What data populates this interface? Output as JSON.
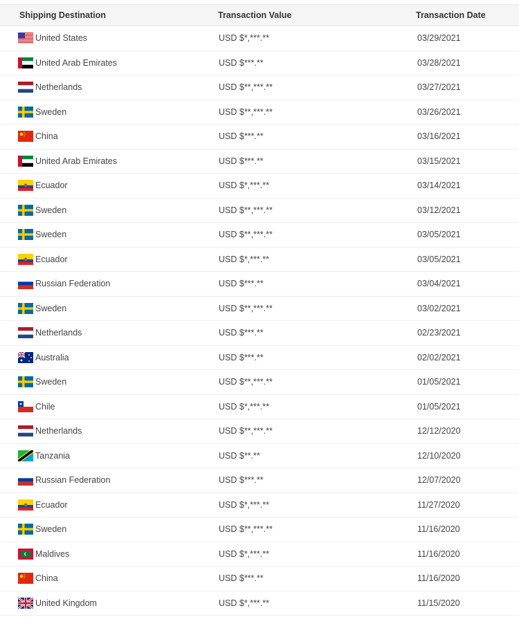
{
  "headers": {
    "destination": "Shipping Destination",
    "value": "Transaction Value",
    "date": "Transaction Date"
  },
  "rows": [
    {
      "country": "United States",
      "flag": "us-flag-icon",
      "value": "USD $*,***.**",
      "date": "03/29/2021"
    },
    {
      "country": "United Arab Emirates",
      "flag": "ae-flag-icon",
      "value": "USD $***.**",
      "date": "03/28/2021"
    },
    {
      "country": "Netherlands",
      "flag": "nl-flag-icon",
      "value": "USD $**,***.**",
      "date": "03/27/2021"
    },
    {
      "country": "Sweden",
      "flag": "se-flag-icon",
      "value": "USD $**,***.**",
      "date": "03/26/2021"
    },
    {
      "country": "China",
      "flag": "cn-flag-icon",
      "value": "USD $***.**",
      "date": "03/16/2021"
    },
    {
      "country": "United Arab Emirates",
      "flag": "ae-flag-icon",
      "value": "USD $***.**",
      "date": "03/15/2021"
    },
    {
      "country": "Ecuador",
      "flag": "ec-flag-icon",
      "value": "USD $*,***.**",
      "date": "03/14/2021"
    },
    {
      "country": "Sweden",
      "flag": "se-flag-icon",
      "value": "USD $**,***.**",
      "date": "03/12/2021"
    },
    {
      "country": "Sweden",
      "flag": "se-flag-icon",
      "value": "USD $**,***.**",
      "date": "03/05/2021"
    },
    {
      "country": "Ecuador",
      "flag": "ec-flag-icon",
      "value": "USD $*,***.**",
      "date": "03/05/2021"
    },
    {
      "country": "Russian Federation",
      "flag": "ru-flag-icon",
      "value": "USD $***.**",
      "date": "03/04/2021"
    },
    {
      "country": "Sweden",
      "flag": "se-flag-icon",
      "value": "USD $**,***.**",
      "date": "03/02/2021"
    },
    {
      "country": "Netherlands",
      "flag": "nl-flag-icon",
      "value": "USD $***.**",
      "date": "02/23/2021"
    },
    {
      "country": "Australia",
      "flag": "au-flag-icon",
      "value": "USD $***.**",
      "date": "02/02/2021"
    },
    {
      "country": "Sweden",
      "flag": "se-flag-icon",
      "value": "USD $**,***.**",
      "date": "01/05/2021"
    },
    {
      "country": "Chile",
      "flag": "cl-flag-icon",
      "value": "USD $*,***.**",
      "date": "01/05/2021"
    },
    {
      "country": "Netherlands",
      "flag": "nl-flag-icon",
      "value": "USD $**,***.**",
      "date": "12/12/2020"
    },
    {
      "country": "Tanzania",
      "flag": "tz-flag-icon",
      "value": "USD $**.**",
      "date": "12/10/2020"
    },
    {
      "country": "Russian Federation",
      "flag": "ru-flag-icon",
      "value": "USD $***.**",
      "date": "12/07/2020"
    },
    {
      "country": "Ecuador",
      "flag": "ec-flag-icon",
      "value": "USD $*,***.**",
      "date": "11/27/2020"
    },
    {
      "country": "Sweden",
      "flag": "se-flag-icon",
      "value": "USD $**,***.**",
      "date": "11/16/2020"
    },
    {
      "country": "Maldives",
      "flag": "mv-flag-icon",
      "value": "USD $*,***.**",
      "date": "11/16/2020"
    },
    {
      "country": "China",
      "flag": "cn-flag-icon",
      "value": "USD $***.**",
      "date": "11/16/2020"
    },
    {
      "country": "United Kingdom",
      "flag": "gb-flag-icon",
      "value": "USD $*,***.**",
      "date": "11/15/2020"
    }
  ]
}
